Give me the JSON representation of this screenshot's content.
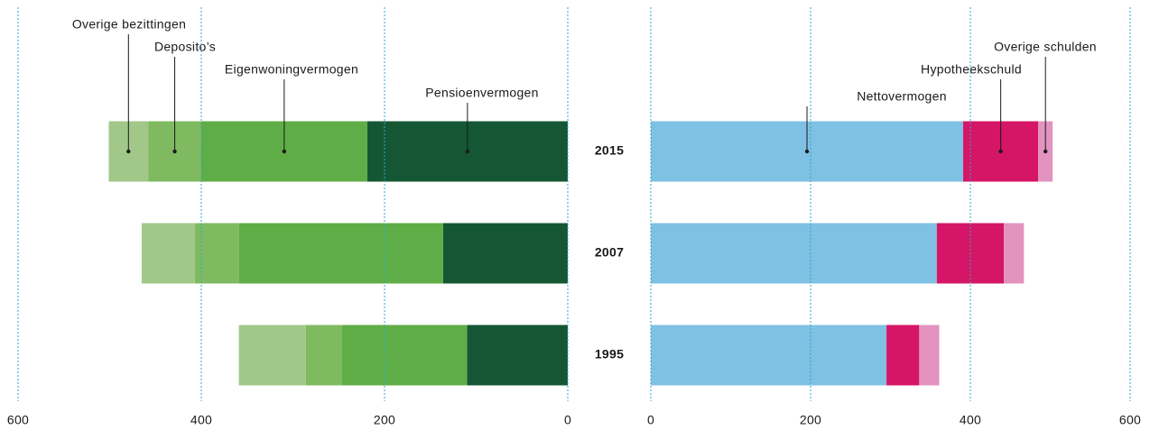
{
  "chart_data": [
    {
      "type": "bar",
      "orientation": "horizontal",
      "stacked": true,
      "categories": [
        "2015",
        "2007",
        "1995"
      ],
      "series": [
        {
          "name": "Pensioenvermogen",
          "color": "#155734",
          "values": [
            219,
            136,
            110
          ]
        },
        {
          "name": "Eigenwoningvermogen",
          "color": "#5fad46",
          "values": [
            181,
            223,
            137
          ]
        },
        {
          "name": "Deposito’s",
          "color": "#7fba61",
          "values": [
            58,
            48,
            39
          ]
        },
        {
          "name": "Overige bezittingen",
          "color": "#a1c888",
          "values": [
            43,
            58,
            73
          ]
        }
      ],
      "xlim": [
        600,
        0
      ],
      "xticks": [
        600,
        400,
        200,
        0
      ],
      "grid": true
    },
    {
      "type": "bar",
      "orientation": "horizontal",
      "stacked": true,
      "series": [
        {
          "name": "Nettovermogen",
          "color": "#7fc1e3",
          "values": [
            391,
            358,
            295
          ]
        },
        {
          "name": "Hypotheekschuld",
          "color": "#d51566",
          "values": [
            94,
            84,
            41
          ]
        },
        {
          "name": "Overige schulden",
          "color": "#e393c0",
          "values": [
            18,
            25,
            25
          ]
        }
      ],
      "xlim": [
        0,
        600
      ],
      "xticks": [
        0,
        200,
        400,
        600
      ],
      "grid": true
    }
  ]
}
